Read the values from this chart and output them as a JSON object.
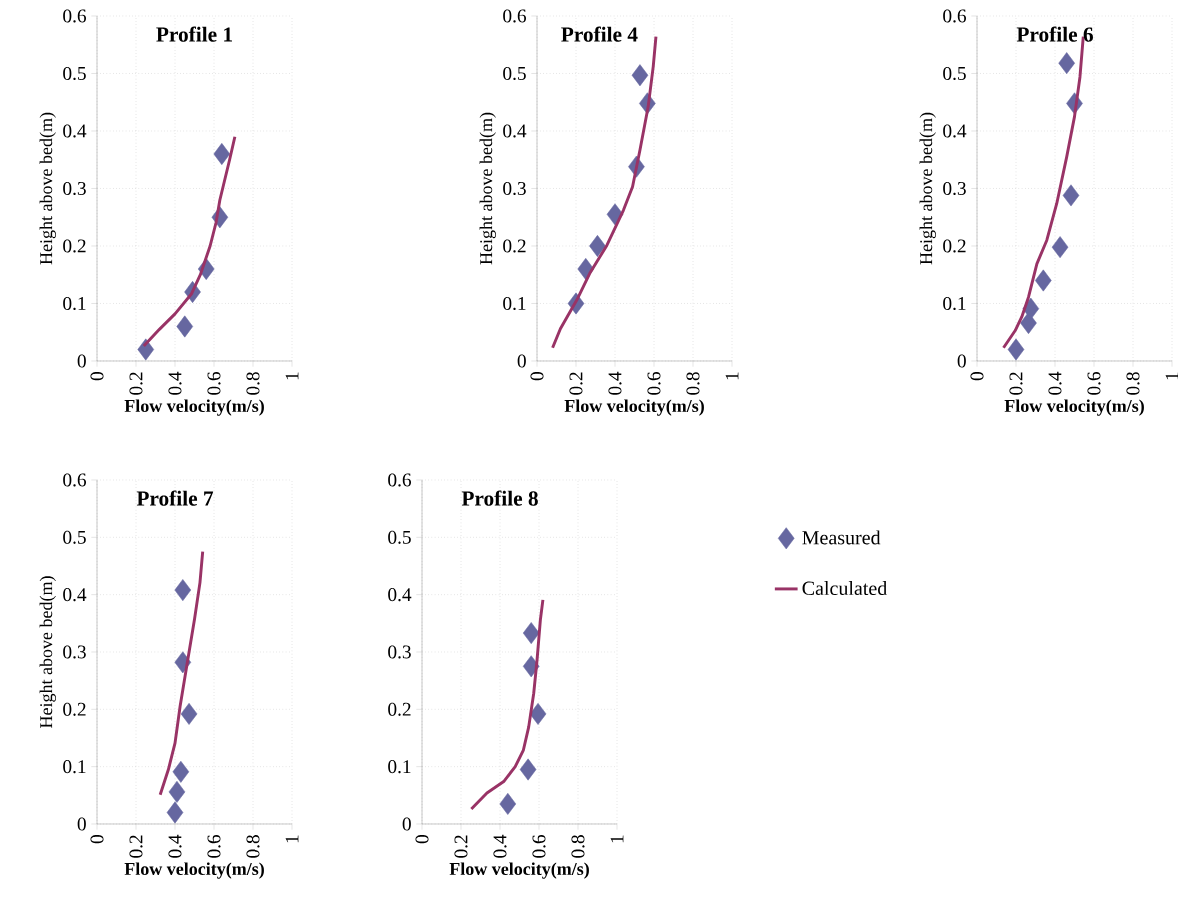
{
  "chart_data": [
    {
      "type": "scatter",
      "title": "Profile 1",
      "xlabel": "Flow velocity(m/s)",
      "ylabel": "Height above bed(m)",
      "xlim": [
        0,
        1
      ],
      "ylim": [
        0,
        0.6
      ],
      "xticks": [
        0,
        0.2,
        0.4,
        0.6,
        0.8,
        1
      ],
      "yticks": [
        0,
        0.1,
        0.2,
        0.3,
        0.4,
        0.5,
        0.6
      ],
      "grid": true,
      "series": [
        {
          "type": "scatter",
          "marker": "diamond",
          "color": "#6667a0",
          "x": [
            0.25,
            0.45,
            0.49,
            0.56,
            0.63,
            0.64
          ],
          "values": [
            0.02,
            0.06,
            0.12,
            0.16,
            0.25,
            0.36
          ]
        },
        {
          "type": "line",
          "marker": "none",
          "color": "#993366",
          "x": [
            0.24,
            0.32,
            0.4,
            0.485,
            0.53,
            0.58,
            0.61,
            0.63,
            0.68,
            0.707
          ],
          "values": [
            0.026,
            0.055,
            0.082,
            0.117,
            0.15,
            0.2,
            0.24,
            0.28,
            0.35,
            0.39
          ]
        }
      ]
    },
    {
      "type": "scatter",
      "title": "Profile 4",
      "xlabel": "Flow velocity(m/s)",
      "ylabel": "Height above bed(m)",
      "xlim": [
        0,
        1
      ],
      "ylim": [
        0,
        0.6
      ],
      "xticks": [
        0,
        0.2,
        0.4,
        0.6,
        0.8,
        1
      ],
      "yticks": [
        0,
        0.1,
        0.2,
        0.3,
        0.4,
        0.5,
        0.6
      ],
      "grid": true,
      "series": [
        {
          "type": "scatter",
          "marker": "diamond",
          "color": "#6667a0",
          "x": [
            0.2,
            0.25,
            0.31,
            0.4,
            0.51,
            0.566,
            0.528
          ],
          "values": [
            0.1,
            0.16,
            0.2,
            0.255,
            0.338,
            0.448,
            0.497
          ]
        },
        {
          "type": "line",
          "marker": "none",
          "color": "#993366",
          "x": [
            0.08,
            0.12,
            0.204,
            0.27,
            0.358,
            0.443,
            0.49,
            0.528,
            0.57,
            0.596,
            0.61
          ],
          "values": [
            0.023,
            0.056,
            0.106,
            0.152,
            0.201,
            0.262,
            0.303,
            0.367,
            0.442,
            0.512,
            0.564
          ]
        }
      ]
    },
    {
      "type": "scatter",
      "title": "Profile 6",
      "xlabel": "Flow velocity(m/s)",
      "ylabel": "Height above bed(m)",
      "xlim": [
        0,
        1
      ],
      "ylim": [
        0,
        0.6
      ],
      "xticks": [
        0,
        0.2,
        0.4,
        0.6,
        0.8,
        1
      ],
      "yticks": [
        0,
        0.1,
        0.2,
        0.3,
        0.4,
        0.5,
        0.6
      ],
      "grid": true,
      "series": [
        {
          "type": "scatter",
          "marker": "diamond",
          "color": "#6667a0",
          "x": [
            0.2,
            0.264,
            0.276,
            0.34,
            0.426,
            0.482,
            0.5,
            0.46
          ],
          "values": [
            0.02,
            0.066,
            0.091,
            0.14,
            0.198,
            0.288,
            0.448,
            0.518
          ]
        },
        {
          "type": "line",
          "marker": "none",
          "color": "#993366",
          "x": [
            0.136,
            0.196,
            0.23,
            0.264,
            0.307,
            0.358,
            0.409,
            0.46,
            0.5,
            0.528,
            0.545
          ],
          "values": [
            0.023,
            0.053,
            0.077,
            0.111,
            0.169,
            0.21,
            0.274,
            0.355,
            0.425,
            0.494,
            0.564
          ]
        }
      ]
    },
    {
      "type": "scatter",
      "title": "Profile 7",
      "xlabel": "Flow velocity(m/s)",
      "ylabel": "Height above bed(m)",
      "xlim": [
        0,
        1
      ],
      "ylim": [
        0,
        0.6
      ],
      "xticks": [
        0,
        0.2,
        0.4,
        0.6,
        0.8,
        1
      ],
      "yticks": [
        0,
        0.1,
        0.2,
        0.3,
        0.4,
        0.5,
        0.6
      ],
      "grid": true,
      "series": [
        {
          "type": "scatter",
          "marker": "diamond",
          "color": "#6667a0",
          "x": [
            0.4,
            0.41,
            0.43,
            0.472,
            0.44,
            0.44
          ],
          "values": [
            0.02,
            0.056,
            0.091,
            0.192,
            0.282,
            0.408
          ]
        },
        {
          "type": "line",
          "marker": "none",
          "color": "#993366",
          "x": [
            0.324,
            0.366,
            0.4,
            0.426,
            0.46,
            0.5,
            0.528,
            0.542
          ],
          "values": [
            0.051,
            0.095,
            0.141,
            0.205,
            0.275,
            0.357,
            0.421,
            0.475
          ]
        }
      ]
    },
    {
      "type": "scatter",
      "title": "Profile 8",
      "xlabel": "Flow velocity(m/s)",
      "xlim": [
        0,
        1
      ],
      "ylim": [
        0,
        0.6
      ],
      "xticks": [
        0,
        0.2,
        0.4,
        0.6,
        0.8,
        1
      ],
      "yticks": [
        0,
        0.1,
        0.2,
        0.3,
        0.4,
        0.5,
        0.6
      ],
      "grid": true,
      "legend": "right",
      "series": [
        {
          "type": "scatter",
          "name": "Measured",
          "marker": "diamond",
          "color": "#6667a0",
          "x": [
            0.44,
            0.544,
            0.595,
            0.56,
            0.56
          ],
          "values": [
            0.035,
            0.095,
            0.192,
            0.275,
            0.333
          ]
        },
        {
          "type": "line",
          "name": "Calculated",
          "marker": "none",
          "color": "#993366",
          "x": [
            0.253,
            0.333,
            0.419,
            0.478,
            0.52,
            0.547,
            0.573,
            0.59,
            0.607,
            0.62
          ],
          "values": [
            0.026,
            0.054,
            0.074,
            0.1,
            0.129,
            0.169,
            0.228,
            0.286,
            0.356,
            0.391
          ]
        }
      ]
    }
  ]
}
